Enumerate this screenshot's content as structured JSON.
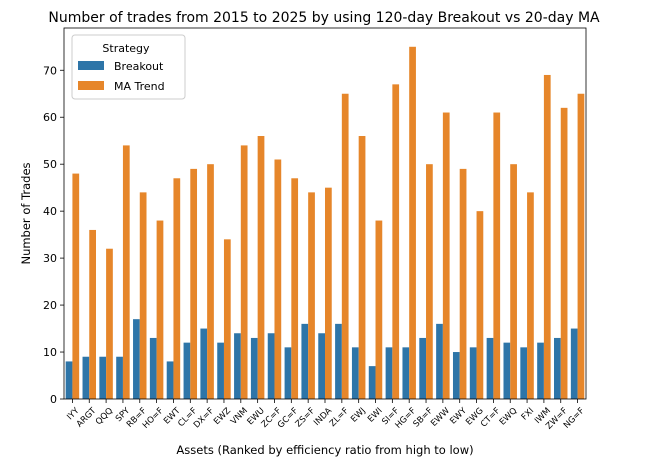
{
  "chart_data": {
    "type": "bar",
    "title": "Number of trades from 2015 to 2025 by using 120-day Breakout vs 20-day MA",
    "xlabel": "Assets (Ranked by efficiency ratio from high to low)",
    "ylabel": "Number of Trades",
    "ylim": [
      0,
      79
    ],
    "yticks": [
      0,
      10,
      20,
      30,
      40,
      50,
      60,
      70
    ],
    "grid": false,
    "legend": {
      "title": "Strategy",
      "placement": "top-left"
    },
    "categories": [
      "IYY",
      "ARGT",
      "QQQ",
      "SPY",
      "RB=F",
      "HO=F",
      "EWT",
      "CL=F",
      "DX=F",
      "EWZ",
      "VNM",
      "EWU",
      "ZC=F",
      "GC=F",
      "ZS=F",
      "INDA",
      "ZL=F",
      "EWJ",
      "EWI",
      "SI=F",
      "HG=F",
      "SB=F",
      "EWW",
      "EWY",
      "EWG",
      "CT=F",
      "EWQ",
      "FXI",
      "IWM",
      "ZW=F",
      "NG=F"
    ],
    "series": [
      {
        "name": "Breakout",
        "color": "#2e75a8",
        "values": [
          8,
          9,
          9,
          9,
          17,
          13,
          8,
          12,
          15,
          12,
          14,
          13,
          14,
          11,
          16,
          14,
          16,
          11,
          7,
          11,
          11,
          13,
          16,
          10,
          11,
          13,
          12,
          11,
          12,
          13,
          15
        ]
      },
      {
        "name": "MA Trend",
        "color": "#e6862a",
        "values": [
          48,
          36,
          32,
          54,
          44,
          38,
          47,
          49,
          50,
          34,
          54,
          56,
          51,
          47,
          44,
          45,
          65,
          56,
          38,
          67,
          75,
          50,
          61,
          49,
          40,
          61,
          50,
          44,
          69,
          62,
          65
        ]
      }
    ]
  }
}
